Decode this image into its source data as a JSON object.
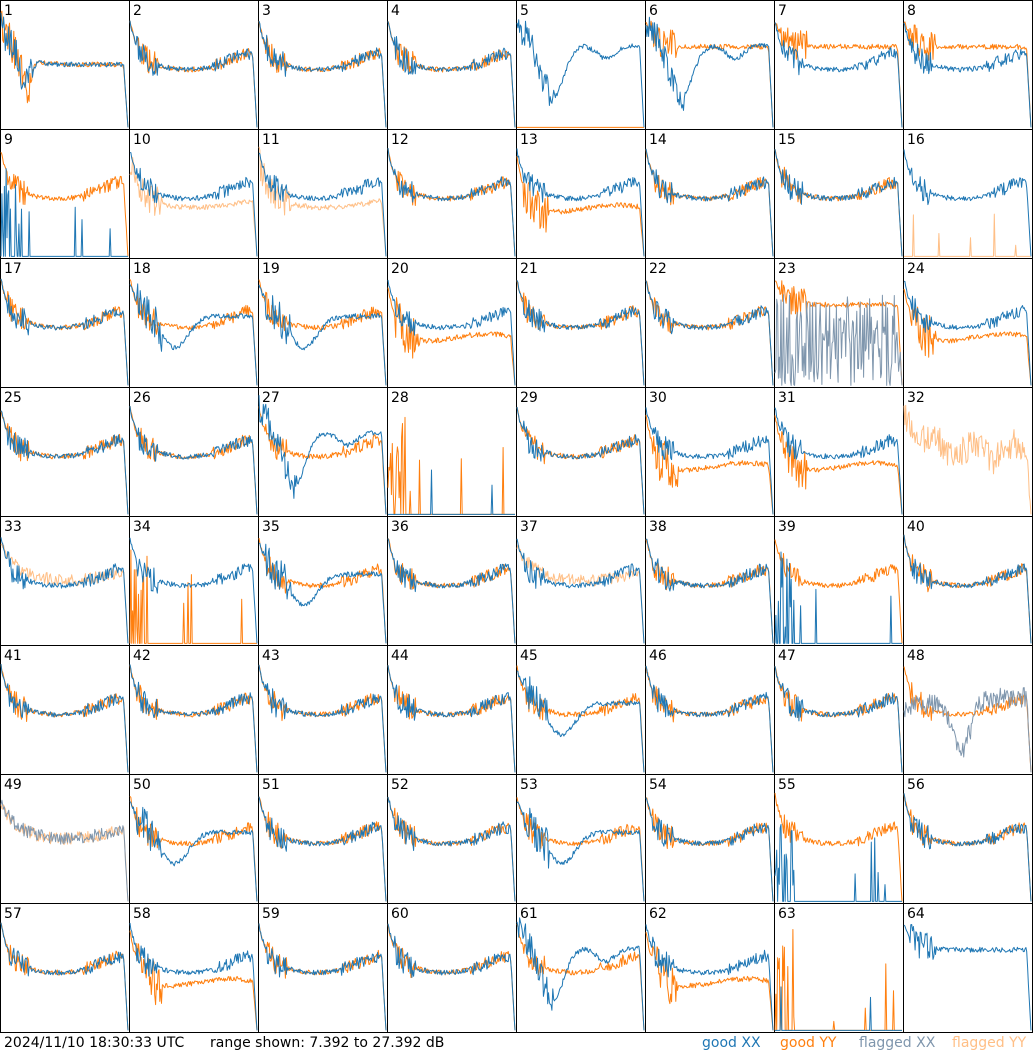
{
  "chart_data": {
    "type": "line",
    "layout": "small-multiples grid, 8 columns x 8 rows, one panel per receiver",
    "y_range_db": [
      7.392,
      27.392
    ],
    "panels": [
      {
        "id": "1",
        "xx": "flatDrop",
        "yy": "flatDrop"
      },
      {
        "id": "2",
        "xx": "normal",
        "yy": "normal"
      },
      {
        "id": "3",
        "xx": "normal",
        "yy": "normal"
      },
      {
        "id": "4",
        "xx": "normal",
        "yy": "normal"
      },
      {
        "id": "5",
        "xx": "bigDip",
        "yy": "dead"
      },
      {
        "id": "6",
        "xx": "bigDip",
        "yy": "flatHigh"
      },
      {
        "id": "7",
        "xx": "normal",
        "yy": "flatHigh"
      },
      {
        "id": "8",
        "xx": "normal",
        "yy": "flatHigh"
      },
      {
        "id": "9",
        "xx": "spikesDead",
        "yy": "normal"
      },
      {
        "id": "10",
        "xx": "normal",
        "yy": "flaggedLow"
      },
      {
        "id": "11",
        "xx": "normal",
        "yy": "flaggedLow"
      },
      {
        "id": "12",
        "xx": "normal",
        "yy": "normal"
      },
      {
        "id": "13",
        "xx": "normal",
        "yy": "lowFlat"
      },
      {
        "id": "14",
        "xx": "normal",
        "yy": "normal"
      },
      {
        "id": "15",
        "xx": "normal",
        "yy": "normal"
      },
      {
        "id": "16",
        "xx": "normal",
        "yy": "deadFlagged"
      },
      {
        "id": "17",
        "xx": "normal",
        "yy": "normal"
      },
      {
        "id": "18",
        "xx": "dipMid",
        "yy": "normal"
      },
      {
        "id": "19",
        "xx": "dipMid",
        "yy": "normal"
      },
      {
        "id": "20",
        "xx": "normal",
        "yy": "lowFlat"
      },
      {
        "id": "21",
        "xx": "normal",
        "yy": "normal"
      },
      {
        "id": "22",
        "xx": "normal",
        "yy": "normal"
      },
      {
        "id": "23",
        "xx": "flaggedNoise",
        "yy": "flatHigh"
      },
      {
        "id": "24",
        "xx": "normal",
        "yy": "lowFlat"
      },
      {
        "id": "25",
        "xx": "normal",
        "yy": "normal"
      },
      {
        "id": "26",
        "xx": "normal",
        "yy": "normal"
      },
      {
        "id": "27",
        "xx": "bigDip",
        "yy": "normal"
      },
      {
        "id": "28",
        "xx": "dead",
        "yy": "spikesDead"
      },
      {
        "id": "29",
        "xx": "normal",
        "yy": "normal"
      },
      {
        "id": "30",
        "xx": "normal",
        "yy": "lowFlat"
      },
      {
        "id": "31",
        "xx": "normal",
        "yy": "lowFlat"
      },
      {
        "id": "32",
        "xx": "none",
        "yy": "flaggedHigh"
      },
      {
        "id": "33",
        "xx": "normal",
        "yy": "flaggedNormal"
      },
      {
        "id": "34",
        "xx": "normal",
        "yy": "spikesDead"
      },
      {
        "id": "35",
        "xx": "dipMid",
        "yy": "normal"
      },
      {
        "id": "36",
        "xx": "normal",
        "yy": "normal"
      },
      {
        "id": "37",
        "xx": "normal",
        "yy": "flaggedNormal"
      },
      {
        "id": "38",
        "xx": "normal",
        "yy": "normal"
      },
      {
        "id": "39",
        "xx": "spikesDead",
        "yy": "normal"
      },
      {
        "id": "40",
        "xx": "normal",
        "yy": "normal"
      },
      {
        "id": "41",
        "xx": "normal",
        "yy": "normal"
      },
      {
        "id": "42",
        "xx": "normal",
        "yy": "normal"
      },
      {
        "id": "43",
        "xx": "normal",
        "yy": "normal"
      },
      {
        "id": "44",
        "xx": "normal",
        "yy": "normal"
      },
      {
        "id": "45",
        "xx": "dipMid",
        "yy": "normal"
      },
      {
        "id": "46",
        "xx": "normal",
        "yy": "normal"
      },
      {
        "id": "47",
        "xx": "normal",
        "yy": "normal"
      },
      {
        "id": "48",
        "xx": "flaggedDip",
        "yy": "normal"
      },
      {
        "id": "49",
        "xx": "flaggedNormal",
        "yy": "flaggedNormal"
      },
      {
        "id": "50",
        "xx": "dipMid",
        "yy": "normal"
      },
      {
        "id": "51",
        "xx": "normal",
        "yy": "normal"
      },
      {
        "id": "52",
        "xx": "normal",
        "yy": "normal"
      },
      {
        "id": "53",
        "xx": "dipMid",
        "yy": "normal"
      },
      {
        "id": "54",
        "xx": "normal",
        "yy": "normal"
      },
      {
        "id": "55",
        "xx": "spikesDead",
        "yy": "normal"
      },
      {
        "id": "56",
        "xx": "normal",
        "yy": "normal"
      },
      {
        "id": "57",
        "xx": "normal",
        "yy": "normal"
      },
      {
        "id": "58",
        "xx": "normal",
        "yy": "lowFlat"
      },
      {
        "id": "59",
        "xx": "normal",
        "yy": "normal"
      },
      {
        "id": "60",
        "xx": "normal",
        "yy": "normal"
      },
      {
        "id": "61",
        "xx": "bigDip",
        "yy": "normal"
      },
      {
        "id": "62",
        "xx": "normal",
        "yy": "lowFlat"
      },
      {
        "id": "63",
        "xx": "dead",
        "yy": "spikesDead"
      },
      {
        "id": "64",
        "xx": "flatHigh",
        "yy": "none"
      }
    ],
    "legend": [
      {
        "word": "good",
        "pol": "XX",
        "color": "#1f77b4"
      },
      {
        "word": "good",
        "pol": "YY",
        "color": "#ff7f0e"
      },
      {
        "word": "flagged",
        "pol": "XX",
        "color": "#7f96ad"
      },
      {
        "word": "flagged",
        "pol": "YY",
        "color": "#ffbf86"
      }
    ]
  },
  "footer": {
    "timestamp": "2024/11/10 18:30:33 UTC",
    "range_text": "range shown: 7.392 to 27.392 dB"
  },
  "colors": {
    "good_xx": "#1f77b4",
    "good_yy": "#ff7f0e",
    "flagged_xx": "#7f96ad",
    "flagged_yy": "#ffbf86"
  }
}
